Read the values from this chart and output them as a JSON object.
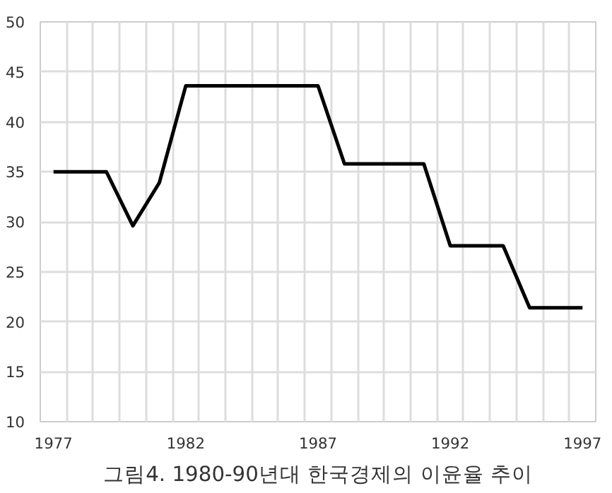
{
  "chart_data": {
    "type": "line",
    "title": "그림4. 1980-90년대 한국경제의 이윤율 추이",
    "x": [
      1977,
      1978,
      1979,
      1980,
      1981,
      1982,
      1983,
      1984,
      1985,
      1986,
      1987,
      1988,
      1989,
      1990,
      1991,
      1992,
      1993,
      1994,
      1995,
      1996,
      1997
    ],
    "series": [
      {
        "color": "#000000",
        "values": [
          35,
          35,
          35,
          29.6,
          33.9,
          43.6,
          43.6,
          43.6,
          43.6,
          43.6,
          43.6,
          35.8,
          35.8,
          35.8,
          35.8,
          27.6,
          27.6,
          27.6,
          21.4,
          21.4,
          21.4
        ]
      }
    ],
    "xlim": [
      1976.5,
      1997.5
    ],
    "xticks": [
      1977,
      1982,
      1987,
      1992,
      1997
    ],
    "ylim": [
      10,
      50
    ],
    "yticks": [
      10,
      15,
      20,
      25,
      30,
      35,
      40,
      45,
      50
    ],
    "grid": true,
    "line_style": "solid"
  }
}
